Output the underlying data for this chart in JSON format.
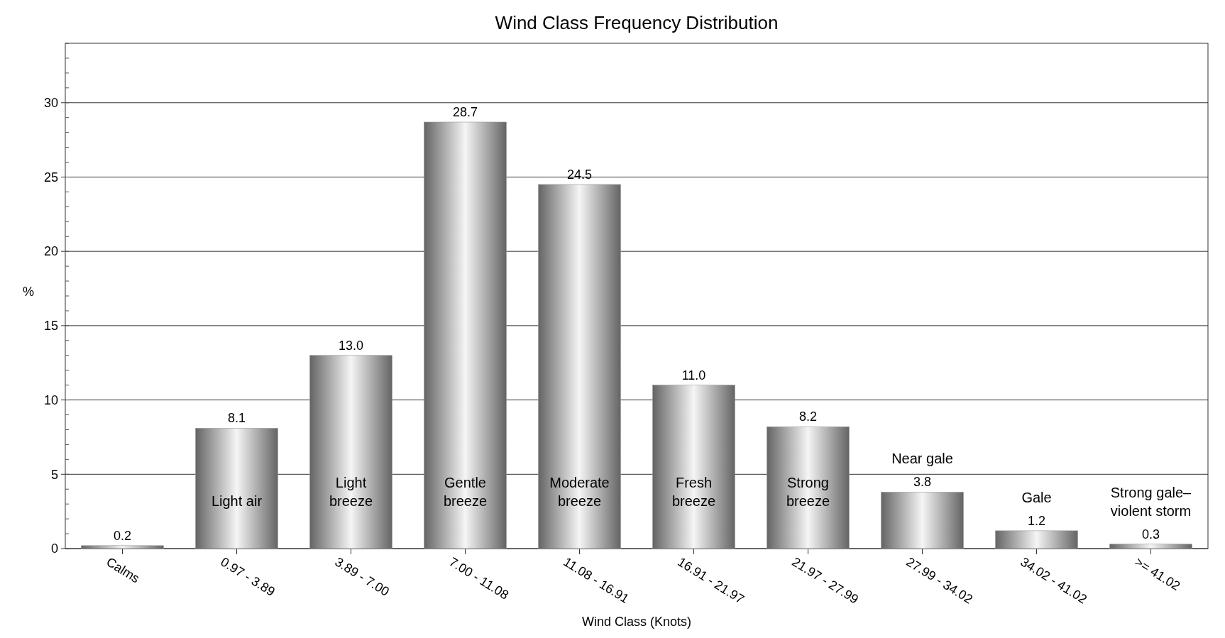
{
  "chart_data": {
    "type": "bar",
    "title": "Wind Class Frequency Distribution",
    "xlabel": "Wind Class (Knots)",
    "ylabel": "%",
    "categories": [
      "Calms",
      "0.97 - 3.89",
      "3.89 - 7.00",
      "7.00 - 11.08",
      "11.08 - 16.91",
      "16.91 - 21.97",
      "21.97 - 27.99",
      "27.99 - 34.02",
      "34.02 - 41.02",
      ">= 41.02"
    ],
    "values": [
      0.2,
      8.1,
      13.0,
      28.7,
      24.5,
      11.0,
      8.2,
      3.8,
      1.2,
      0.3
    ],
    "value_labels": [
      "0.2",
      "8.1",
      "13.0",
      "28.7",
      "24.5",
      "11.0",
      "8.2",
      "3.8",
      "1.2",
      "0.3"
    ],
    "color": "#9a9a9a",
    "ylim": [
      0,
      34
    ],
    "yticks": [
      0,
      5,
      10,
      15,
      20,
      25,
      30
    ],
    "grid": "y",
    "annotations": [
      "Light air",
      "Light\nbreeze",
      "Gentle\nbreeze",
      "Moderate\nbreeze",
      "Fresh\nbreeze",
      "Strong\nbreeze",
      "Near gale",
      "Gale",
      "Strong gale–\nviolent storm"
    ]
  }
}
